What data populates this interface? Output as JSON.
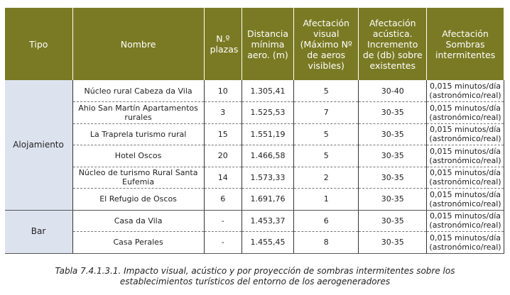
{
  "table": {
    "headers": {
      "tipo": "Tipo",
      "nombre": "Nombre",
      "plazas": "N.º plazas",
      "distancia": "Distancia mínima aero. (m)",
      "visual": "Afectación visual (Máximo Nº de aeros visibles)",
      "acustica": "Afectación acústica. Incremento de (db) sobre existentes",
      "sombras": "Afectación Sombras intermitentes"
    },
    "groups": {
      "alojamiento": "Alojamiento",
      "bar": "Bar"
    },
    "rows": [
      {
        "nombre": "Núcleo rural Cabeza da Vila",
        "plazas": "10",
        "distancia": "1.305,41",
        "visual": "5",
        "acustica": "30-40",
        "sombras": "0,015 minutos/día (astronómico/real)"
      },
      {
        "nombre": "Ahio San Martín Apartamentos rurales",
        "plazas": "3",
        "distancia": "1.525,53",
        "visual": "7",
        "acustica": "30-35",
        "sombras": "0,015 minutos/día (astronómico/real)"
      },
      {
        "nombre": "La Traprela turismo rural",
        "plazas": "15",
        "distancia": "1.551,19",
        "visual": "5",
        "acustica": "30-35",
        "sombras": "0,015 minutos/día (astronómico/real)"
      },
      {
        "nombre": "Hotel Oscos",
        "plazas": "20",
        "distancia": "1.466,58",
        "visual": "5",
        "acustica": "30-35",
        "sombras": "0,015 minutos/día (astronómico/real)"
      },
      {
        "nombre": "Núcleo de turismo Rural Santa Eufemia",
        "plazas": "14",
        "distancia": "1.573,33",
        "visual": "2",
        "acustica": "30-35",
        "sombras": "0,015 minutos/día (astronómico/real)"
      },
      {
        "nombre": "El Refugio de Oscos",
        "plazas": "6",
        "distancia": "1.691,76",
        "visual": "1",
        "acustica": "30-35",
        "sombras": "0,015 minutos/día (astronómico/real)"
      },
      {
        "nombre": "Casa da Vila",
        "plazas": "-",
        "distancia": "1.453,37",
        "visual": "6",
        "acustica": "30-35",
        "sombras": "0,015 minutos/día (astronómico/real)"
      },
      {
        "nombre": "Casa Perales",
        "plazas": "-",
        "distancia": "1.455,45",
        "visual": "8",
        "acustica": "30-35",
        "sombras": "0,015 minutos/día (astronómico/real)"
      }
    ]
  },
  "caption": {
    "line1": "Tabla 7.4.1.3.1. Impacto visual, acústico y por proyección de sombras intermitentes sobre los",
    "line2": "establecimientos turísticos del entorno de los aerogeneradores"
  },
  "colors": {
    "header_bg": "#7a7a24",
    "group_bg": "#dde3ee"
  }
}
